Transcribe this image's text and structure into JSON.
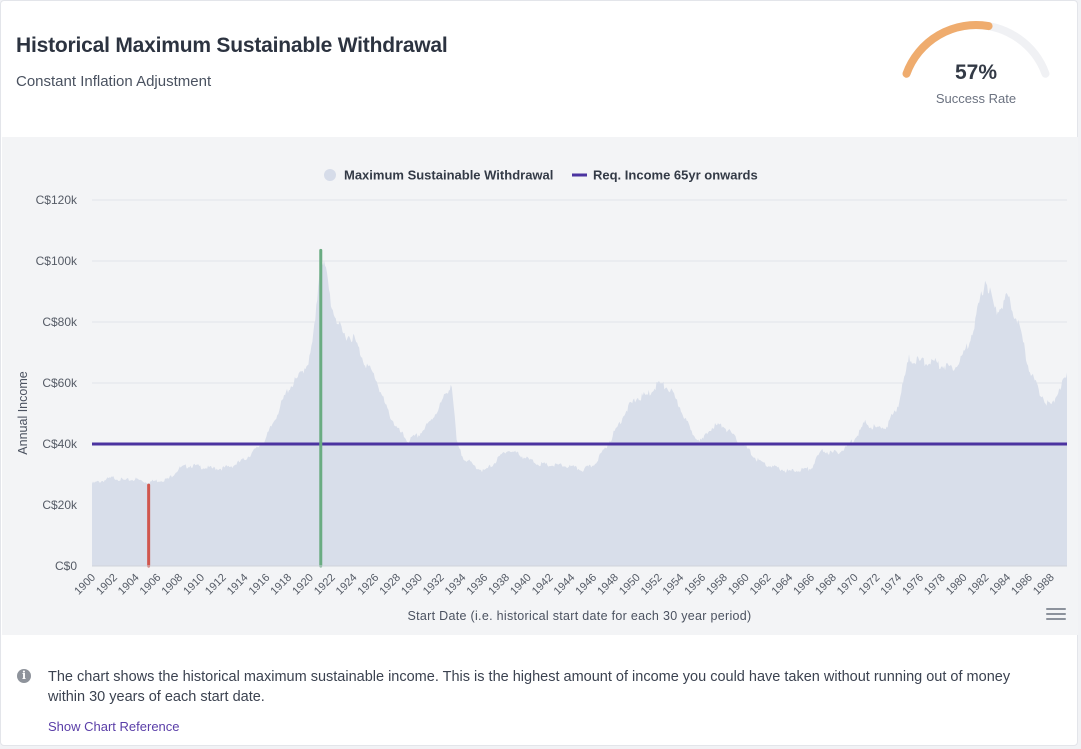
{
  "header": {
    "title": "Historical Maximum Sustainable Withdrawal",
    "subtitle": "Constant Inflation Adjustment"
  },
  "gauge": {
    "value_label": "57%",
    "value": 0.57,
    "label": "Success Rate",
    "color": "#efac6e",
    "track_color": "#f0f1f4"
  },
  "chart_data": {
    "type": "area",
    "legend": [
      {
        "name": "Maximum Sustainable Withdrawal",
        "marker": "circle",
        "color": "#d6dce9"
      },
      {
        "name": "Req. Income 65yr onwards",
        "marker": "line",
        "color": "#4b33a0"
      }
    ],
    "legend_position": "top-center",
    "xlabel": "Start Date (i.e. historical start date for each 30 year period)",
    "ylabel": "Annual Income",
    "xlim": [
      1900,
      1989.5
    ],
    "ylim": [
      0,
      120000
    ],
    "y_ticks": [
      0,
      20000,
      40000,
      60000,
      80000,
      100000,
      120000
    ],
    "y_tick_labels": [
      "C$0",
      "C$20k",
      "C$40k",
      "C$60k",
      "C$80k",
      "C$100k",
      "C$120k"
    ],
    "x_ticks": [
      1900,
      1902,
      1904,
      1906,
      1908,
      1910,
      1912,
      1914,
      1916,
      1918,
      1920,
      1922,
      1924,
      1926,
      1928,
      1930,
      1932,
      1934,
      1936,
      1938,
      1940,
      1942,
      1944,
      1946,
      1948,
      1950,
      1952,
      1954,
      1956,
      1958,
      1960,
      1962,
      1964,
      1966,
      1968,
      1970,
      1972,
      1974,
      1976,
      1978,
      1980,
      1982,
      1984,
      1986,
      1988
    ],
    "x_tick_labels": [
      "1900",
      "1902",
      "1904",
      "1906",
      "1908",
      "1910",
      "1912",
      "1914",
      "1916",
      "1918",
      "1920",
      "1922",
      "1924",
      "1926",
      "1928",
      "1930",
      "1932",
      "1934",
      "1936",
      "1938",
      "1940",
      "1942",
      "1944",
      "1946",
      "1948",
      "1950",
      "1952",
      "1954",
      "1956",
      "1958",
      "1960",
      "1962",
      "1964",
      "1966",
      "1968",
      "1970",
      "1972",
      "1974",
      "1976",
      "1978",
      "1980",
      "1982",
      "1984",
      "1986",
      "1988"
    ],
    "grid": true,
    "series": [
      {
        "name": "Maximum Sustainable Withdrawal",
        "x": [
          1900,
          1901,
          1902,
          1903,
          1904,
          1905,
          1906,
          1907,
          1908,
          1909,
          1910,
          1911,
          1912,
          1913,
          1914,
          1915,
          1916,
          1917,
          1918,
          1919,
          1920,
          1920.5,
          1921,
          1921.5,
          1922,
          1923,
          1924,
          1925,
          1926,
          1927,
          1928,
          1929,
          1930,
          1931,
          1932,
          1933,
          1933.5,
          1934,
          1935,
          1936,
          1937,
          1938,
          1939,
          1940,
          1941,
          1942,
          1943,
          1944,
          1945,
          1946,
          1947,
          1948,
          1949,
          1950,
          1951,
          1952,
          1953,
          1954,
          1955,
          1956,
          1957,
          1958,
          1959,
          1960,
          1961,
          1962,
          1963,
          1964,
          1965,
          1966,
          1967,
          1968,
          1969,
          1970,
          1971,
          1972,
          1973,
          1974,
          1975,
          1976,
          1977,
          1978,
          1979,
          1980,
          1981,
          1982,
          1983,
          1984,
          1985,
          1986,
          1987,
          1988,
          1989,
          1989.5
        ],
        "values": [
          27000,
          28000,
          29000,
          28000,
          28500,
          27500,
          28000,
          28500,
          32000,
          33000,
          32500,
          32000,
          32000,
          33000,
          35000,
          38000,
          42000,
          50000,
          58000,
          62000,
          68000,
          80000,
          103000,
          96000,
          85000,
          76000,
          75000,
          67000,
          62000,
          52000,
          45000,
          41000,
          43000,
          47000,
          53000,
          60000,
          40000,
          36000,
          33000,
          31000,
          34000,
          38000,
          37000,
          35000,
          33500,
          33000,
          33000,
          32500,
          31500,
          33000,
          38000,
          44000,
          51000,
          55000,
          56000,
          60000,
          58000,
          52000,
          44000,
          41000,
          46000,
          46000,
          42000,
          39000,
          35000,
          33000,
          32000,
          31000,
          31500,
          32000,
          38000,
          37000,
          38000,
          42000,
          47000,
          45000,
          46000,
          53000,
          68000,
          67000,
          67000,
          66000,
          65000,
          69000,
          79000,
          94000,
          83000,
          88000,
          80000,
          65000,
          57000,
          52000,
          60000,
          62000
        ]
      },
      {
        "name": "Req. Income 65yr onwards",
        "x": [
          1900,
          1989.5
        ],
        "values": [
          40000,
          40000
        ]
      }
    ],
    "markers": [
      {
        "x": 1905.2,
        "value": 26500,
        "color": "#d0574e"
      },
      {
        "x": 1921.0,
        "value": 103500,
        "color": "#6aac82"
      }
    ]
  },
  "footer": {
    "info_text": "The chart shows the historical maximum sustainable income. This is the highest amount of income you could have taken without running out of money within 30 years of each start date.",
    "link_label": "Show Chart Reference"
  },
  "colors": {
    "area_fill": "#d8deea",
    "required_line": "#4b33a0",
    "grid": "#e2e4e9",
    "axis_text": "#555b66",
    "link": "#5a3ea8"
  }
}
